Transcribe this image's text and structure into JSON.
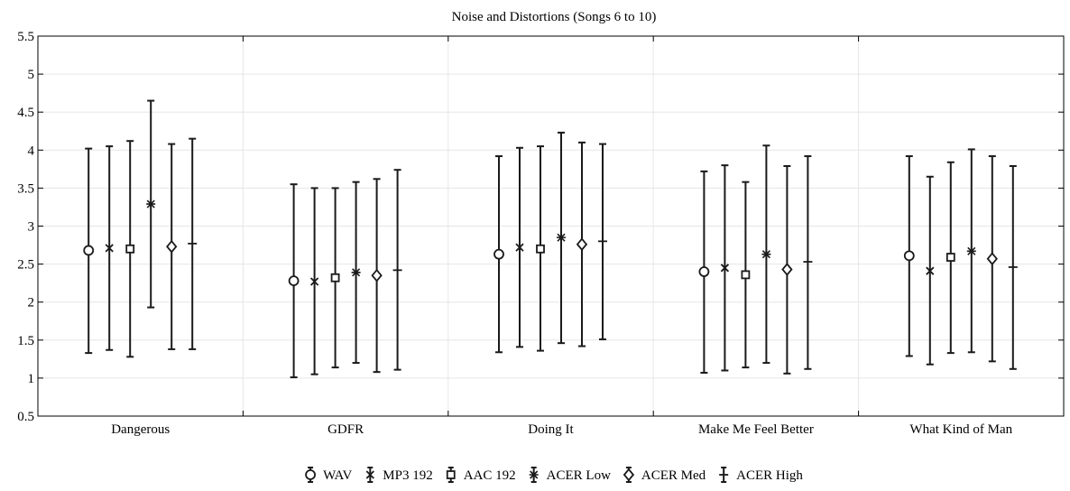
{
  "chart_data": {
    "type": "errorbar",
    "title": "Noise and Distortions (Songs 6 to 10)",
    "xlabel": "",
    "ylabel": "",
    "categories": [
      "Dangerous",
      "GDFR",
      "Doing It",
      "Make Me Feel Better",
      "What Kind of Man"
    ],
    "ylim": [
      0.5,
      5.5
    ],
    "yticks": [
      "0.5",
      "1",
      "1.5",
      "2",
      "2.5",
      "3",
      "3.5",
      "4",
      "4.5",
      "5",
      "5.5"
    ],
    "grid": true,
    "legend_position": "bottom",
    "series": [
      {
        "name": "WAV",
        "marker": "circle",
        "values": [
          2.68,
          2.28,
          2.63,
          2.4,
          2.61
        ],
        "lower": [
          1.33,
          1.01,
          1.34,
          1.07,
          1.29
        ],
        "upper": [
          4.02,
          3.55,
          3.92,
          3.72,
          3.92
        ]
      },
      {
        "name": "MP3 192",
        "marker": "x",
        "values": [
          2.71,
          2.27,
          2.72,
          2.45,
          2.41
        ],
        "lower": [
          1.37,
          1.05,
          1.41,
          1.1,
          1.18
        ],
        "upper": [
          4.05,
          3.5,
          4.03,
          3.8,
          3.65
        ]
      },
      {
        "name": "AAC 192",
        "marker": "square",
        "values": [
          2.7,
          2.32,
          2.7,
          2.36,
          2.59
        ],
        "lower": [
          1.28,
          1.14,
          1.36,
          1.14,
          1.33
        ],
        "upper": [
          4.12,
          3.5,
          4.05,
          3.58,
          3.84
        ]
      },
      {
        "name": "ACER Low",
        "marker": "asterisk",
        "values": [
          3.29,
          2.39,
          2.85,
          2.63,
          2.67
        ],
        "lower": [
          1.93,
          1.2,
          1.46,
          1.2,
          1.34
        ],
        "upper": [
          4.65,
          3.58,
          4.23,
          4.06,
          4.01
        ]
      },
      {
        "name": "ACER Med",
        "marker": "diamond",
        "values": [
          2.73,
          2.35,
          2.76,
          2.43,
          2.57
        ],
        "lower": [
          1.38,
          1.08,
          1.42,
          1.06,
          1.22
        ],
        "upper": [
          4.08,
          3.62,
          4.1,
          3.79,
          3.92
        ]
      },
      {
        "name": "ACER High",
        "marker": "plus",
        "values": [
          2.77,
          2.42,
          2.8,
          2.53,
          2.46
        ],
        "lower": [
          1.38,
          1.11,
          1.51,
          1.12,
          1.12
        ],
        "upper": [
          4.15,
          3.74,
          4.08,
          3.92,
          3.79
        ]
      }
    ],
    "colors": {
      "line": "#1a1a1a",
      "grid": "#e6e6e6",
      "axis": "#000000"
    }
  }
}
